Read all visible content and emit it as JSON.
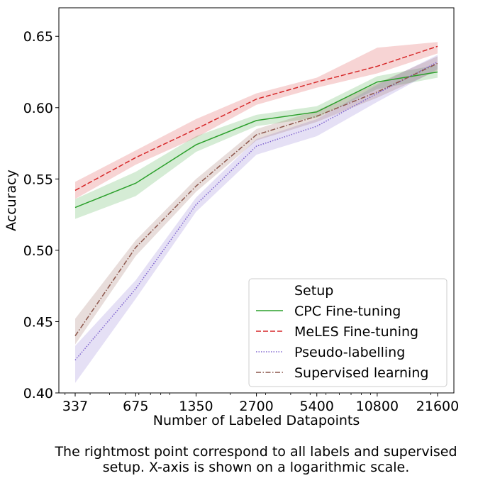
{
  "chart_data": {
    "type": "line",
    "xlabel": "Number of Labeled Datapoints",
    "ylabel": "Accuracy",
    "xscale": "log",
    "ylim": [
      0.4,
      0.67
    ],
    "x": [
      337,
      675,
      1350,
      2700,
      5400,
      10800,
      21600
    ],
    "x_tick_labels": [
      "337",
      "675",
      "1350",
      "2700",
      "5400",
      "10800",
      "21600"
    ],
    "y_ticks": [
      0.4,
      0.45,
      0.5,
      0.55,
      0.6,
      0.65
    ],
    "y_tick_labels": [
      "0.40",
      "0.45",
      "0.50",
      "0.55",
      "0.60",
      "0.65"
    ],
    "legend": {
      "title": "Setup",
      "position": "lower right"
    },
    "grid": false,
    "series": [
      {
        "name": "CPC Fine-tuning",
        "color": "#2ca02c",
        "dash": "solid",
        "values": [
          0.53,
          0.547,
          0.574,
          0.591,
          0.597,
          0.618,
          0.625
        ],
        "lower": [
          0.522,
          0.538,
          0.569,
          0.587,
          0.593,
          0.613,
          0.621
        ],
        "upper": [
          0.536,
          0.555,
          0.58,
          0.595,
          0.601,
          0.622,
          0.63
        ]
      },
      {
        "name": "MeLES Fine-tuning",
        "color": "#d62728",
        "dash": "dashed",
        "values": [
          0.542,
          0.565,
          0.585,
          0.606,
          0.618,
          0.629,
          0.643
        ],
        "lower": [
          0.536,
          0.56,
          0.579,
          0.602,
          0.614,
          0.624,
          0.638
        ],
        "upper": [
          0.548,
          0.57,
          0.592,
          0.61,
          0.621,
          0.642,
          0.646
        ]
      },
      {
        "name": "Pseudo-labelling",
        "color": "#7f63cf",
        "dash": "dotted",
        "values": [
          0.423,
          0.473,
          0.532,
          0.573,
          0.587,
          0.61,
          0.632
        ],
        "lower": [
          0.407,
          0.466,
          0.527,
          0.567,
          0.58,
          0.604,
          0.627
        ],
        "upper": [
          0.433,
          0.479,
          0.537,
          0.578,
          0.592,
          0.616,
          0.637
        ]
      },
      {
        "name": "Supervised learning",
        "color": "#8c564b",
        "dash": "dashdot",
        "values": [
          0.44,
          0.502,
          0.545,
          0.581,
          0.594,
          0.611,
          0.631
        ],
        "lower": [
          0.434,
          0.496,
          0.541,
          0.577,
          0.59,
          0.607,
          0.626
        ],
        "upper": [
          0.452,
          0.507,
          0.55,
          0.585,
          0.598,
          0.617,
          0.636
        ]
      }
    ]
  },
  "caption": {
    "line1": "The rightmost point correspond to all labels and supervised",
    "line2": "setup. X-axis is shown on a logarithmic scale."
  }
}
